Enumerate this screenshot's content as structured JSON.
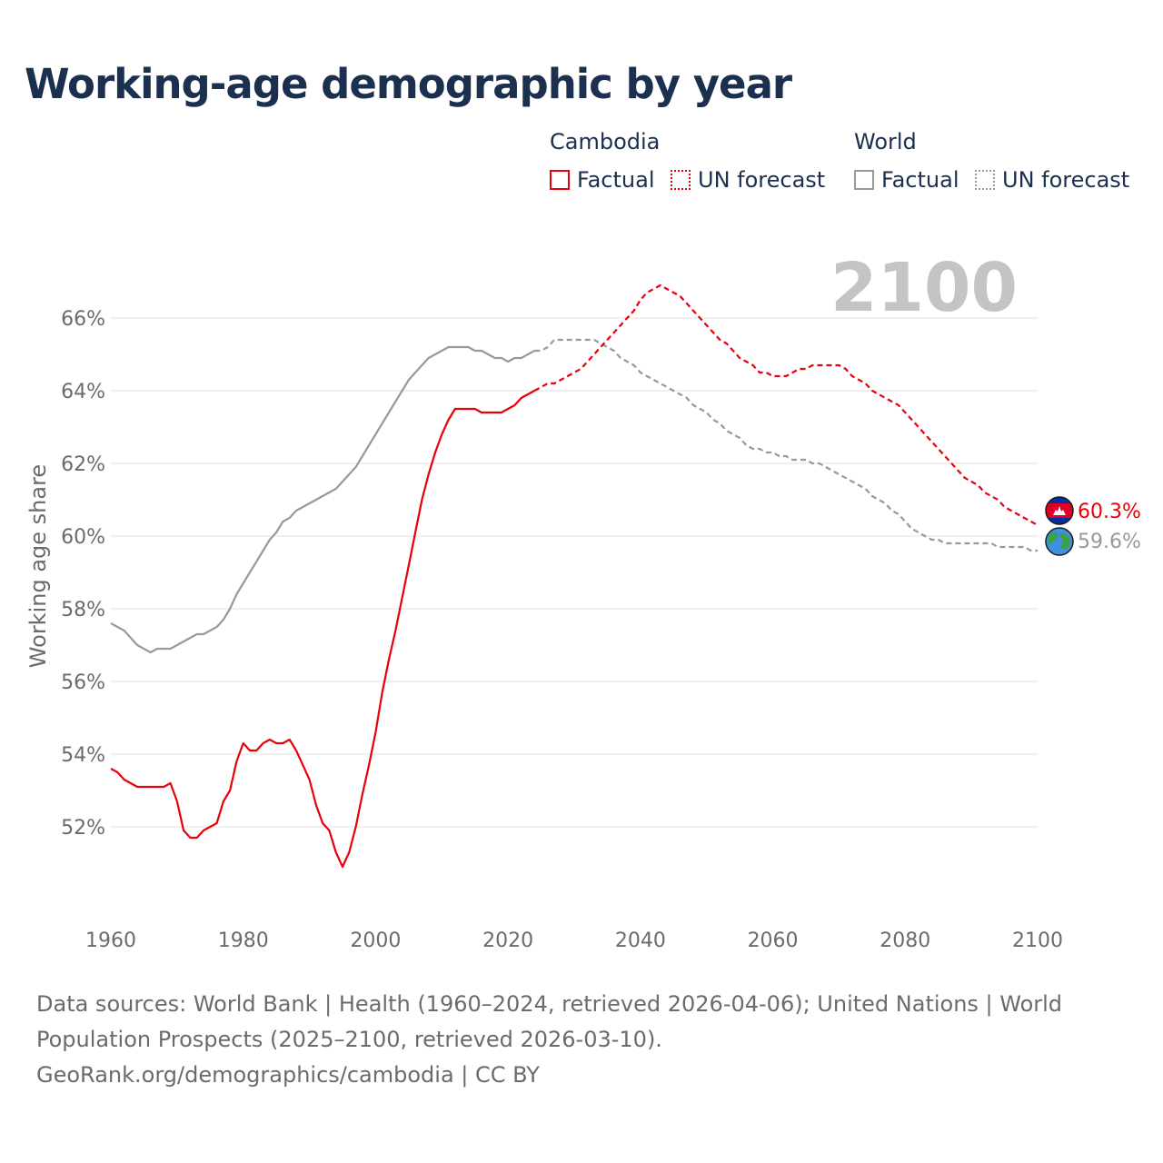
{
  "title": "Working-age demographic by year",
  "legend": {
    "cambodia_title": "Cambodia",
    "world_title": "World",
    "factual_label": "Factual",
    "forecast_label": "UN forecast"
  },
  "year_label": "2100",
  "colors": {
    "cambodia": "#e8000b",
    "world": "#999999",
    "title": "#1b2f4f",
    "grid": "#e6e6e6",
    "axis_text": "#6b6b6b",
    "year_watermark": "#c4c4c4"
  },
  "end_labels": {
    "cambodia": "60.3%",
    "world": "59.6%",
    "cambodia_icon": "cambodia-flag-icon",
    "world_icon": "globe-icon"
  },
  "chart_data": {
    "type": "line",
    "title": "Working-age demographic by year",
    "xlabel": "",
    "ylabel": "Working age share",
    "xlim": [
      1960,
      2100
    ],
    "ylim": [
      50,
      67.5
    ],
    "x_ticks": [
      1960,
      1980,
      2000,
      2020,
      2040,
      2060,
      2080,
      2100
    ],
    "x_tick_labels": [
      "1960",
      "1980",
      "2000",
      "2020",
      "2040",
      "2060",
      "2080",
      "2100"
    ],
    "y_ticks": [
      52,
      54,
      56,
      58,
      60,
      62,
      64,
      66
    ],
    "y_tick_labels": [
      "52%",
      "54%",
      "56%",
      "58%",
      "60%",
      "62%",
      "64%",
      "66%"
    ],
    "grid": true,
    "series": [
      {
        "name": "Cambodia Factual",
        "country": "Cambodia",
        "style": "solid",
        "x": [
          1960,
          1961,
          1962,
          1963,
          1964,
          1965,
          1966,
          1967,
          1968,
          1969,
          1970,
          1971,
          1972,
          1973,
          1974,
          1975,
          1976,
          1977,
          1978,
          1979,
          1980,
          1981,
          1982,
          1983,
          1984,
          1985,
          1986,
          1987,
          1988,
          1989,
          1990,
          1991,
          1992,
          1993,
          1994,
          1995,
          1996,
          1997,
          1998,
          1999,
          2000,
          2001,
          2002,
          2003,
          2004,
          2005,
          2006,
          2007,
          2008,
          2009,
          2010,
          2011,
          2012,
          2013,
          2014,
          2015,
          2016,
          2017,
          2018,
          2019,
          2020,
          2021,
          2022,
          2023,
          2024
        ],
        "values": [
          53.6,
          53.5,
          53.3,
          53.2,
          53.1,
          53.1,
          53.1,
          53.1,
          53.1,
          53.2,
          52.7,
          51.9,
          51.7,
          51.7,
          51.9,
          52.0,
          52.1,
          52.7,
          53.0,
          53.8,
          54.3,
          54.1,
          54.1,
          54.3,
          54.4,
          54.3,
          54.3,
          54.4,
          54.1,
          53.7,
          53.3,
          52.6,
          52.1,
          51.9,
          51.3,
          50.9,
          51.3,
          52.0,
          52.9,
          53.7,
          54.6,
          55.7,
          56.6,
          57.4,
          58.3,
          59.2,
          60.1,
          61.0,
          61.7,
          62.3,
          62.8,
          63.2,
          63.5,
          63.5,
          63.5,
          63.5,
          63.4,
          63.4,
          63.4,
          63.4,
          63.5,
          63.6,
          63.8,
          63.9,
          64.0
        ]
      },
      {
        "name": "Cambodia UN forecast",
        "country": "Cambodia",
        "style": "dashed",
        "x": [
          2024,
          2025,
          2026,
          2027,
          2028,
          2029,
          2030,
          2031,
          2032,
          2033,
          2034,
          2035,
          2036,
          2037,
          2038,
          2039,
          2040,
          2041,
          2042,
          2043,
          2044,
          2045,
          2046,
          2047,
          2048,
          2049,
          2050,
          2051,
          2052,
          2053,
          2054,
          2055,
          2056,
          2057,
          2058,
          2059,
          2060,
          2061,
          2062,
          2063,
          2064,
          2065,
          2066,
          2067,
          2068,
          2069,
          2070,
          2071,
          2072,
          2073,
          2074,
          2075,
          2076,
          2077,
          2078,
          2079,
          2080,
          2081,
          2082,
          2083,
          2084,
          2085,
          2086,
          2087,
          2088,
          2089,
          2090,
          2091,
          2092,
          2093,
          2094,
          2095,
          2096,
          2097,
          2098,
          2099,
          2100
        ],
        "values": [
          64.0,
          64.1,
          64.2,
          64.2,
          64.3,
          64.4,
          64.5,
          64.6,
          64.8,
          65.0,
          65.2,
          65.4,
          65.6,
          65.8,
          66.0,
          66.2,
          66.5,
          66.7,
          66.8,
          66.9,
          66.8,
          66.7,
          66.6,
          66.4,
          66.2,
          66.0,
          65.8,
          65.6,
          65.4,
          65.3,
          65.1,
          64.9,
          64.8,
          64.7,
          64.5,
          64.5,
          64.4,
          64.4,
          64.4,
          64.5,
          64.6,
          64.6,
          64.7,
          64.7,
          64.7,
          64.7,
          64.7,
          64.6,
          64.4,
          64.3,
          64.2,
          64.0,
          63.9,
          63.8,
          63.7,
          63.6,
          63.4,
          63.2,
          63.0,
          62.8,
          62.6,
          62.4,
          62.2,
          62.0,
          61.8,
          61.6,
          61.5,
          61.4,
          61.2,
          61.1,
          61.0,
          60.8,
          60.7,
          60.6,
          60.5,
          60.4,
          60.3
        ]
      },
      {
        "name": "World Factual",
        "country": "World",
        "style": "solid",
        "x": [
          1960,
          1961,
          1962,
          1963,
          1964,
          1965,
          1966,
          1967,
          1968,
          1969,
          1970,
          1971,
          1972,
          1973,
          1974,
          1975,
          1976,
          1977,
          1978,
          1979,
          1980,
          1981,
          1982,
          1983,
          1984,
          1985,
          1986,
          1987,
          1988,
          1989,
          1990,
          1991,
          1992,
          1993,
          1994,
          1995,
          1996,
          1997,
          1998,
          1999,
          2000,
          2001,
          2002,
          2003,
          2004,
          2005,
          2006,
          2007,
          2008,
          2009,
          2010,
          2011,
          2012,
          2013,
          2014,
          2015,
          2016,
          2017,
          2018,
          2019,
          2020,
          2021,
          2022,
          2023,
          2024
        ],
        "values": [
          57.6,
          57.5,
          57.4,
          57.2,
          57.0,
          56.9,
          56.8,
          56.9,
          56.9,
          56.9,
          57.0,
          57.1,
          57.2,
          57.3,
          57.3,
          57.4,
          57.5,
          57.7,
          58.0,
          58.4,
          58.7,
          59.0,
          59.3,
          59.6,
          59.9,
          60.1,
          60.4,
          60.5,
          60.7,
          60.8,
          60.9,
          61.0,
          61.1,
          61.2,
          61.3,
          61.5,
          61.7,
          61.9,
          62.2,
          62.5,
          62.8,
          63.1,
          63.4,
          63.7,
          64.0,
          64.3,
          64.5,
          64.7,
          64.9,
          65.0,
          65.1,
          65.2,
          65.2,
          65.2,
          65.2,
          65.1,
          65.1,
          65.0,
          64.9,
          64.9,
          64.8,
          64.9,
          64.9,
          65.0,
          65.1
        ]
      },
      {
        "name": "World UN forecast",
        "country": "World",
        "style": "dashed",
        "x": [
          2024,
          2025,
          2026,
          2027,
          2028,
          2029,
          2030,
          2031,
          2032,
          2033,
          2034,
          2035,
          2036,
          2037,
          2038,
          2039,
          2040,
          2041,
          2042,
          2043,
          2044,
          2045,
          2046,
          2047,
          2048,
          2049,
          2050,
          2051,
          2052,
          2053,
          2054,
          2055,
          2056,
          2057,
          2058,
          2059,
          2060,
          2061,
          2062,
          2063,
          2064,
          2065,
          2066,
          2067,
          2068,
          2069,
          2070,
          2071,
          2072,
          2073,
          2074,
          2075,
          2076,
          2077,
          2078,
          2079,
          2080,
          2081,
          2082,
          2083,
          2084,
          2085,
          2086,
          2087,
          2088,
          2089,
          2090,
          2091,
          2092,
          2093,
          2094,
          2095,
          2096,
          2097,
          2098,
          2099,
          2100
        ],
        "values": [
          65.1,
          65.1,
          65.2,
          65.4,
          65.4,
          65.4,
          65.4,
          65.4,
          65.4,
          65.4,
          65.3,
          65.2,
          65.1,
          64.9,
          64.8,
          64.7,
          64.5,
          64.4,
          64.3,
          64.2,
          64.1,
          64.0,
          63.9,
          63.8,
          63.6,
          63.5,
          63.4,
          63.2,
          63.1,
          62.9,
          62.8,
          62.7,
          62.5,
          62.4,
          62.4,
          62.3,
          62.3,
          62.2,
          62.2,
          62.1,
          62.1,
          62.1,
          62.0,
          62.0,
          61.9,
          61.8,
          61.7,
          61.6,
          61.5,
          61.4,
          61.3,
          61.1,
          61.0,
          60.9,
          60.7,
          60.6,
          60.4,
          60.2,
          60.1,
          60.0,
          59.9,
          59.9,
          59.8,
          59.8,
          59.8,
          59.8,
          59.8,
          59.8,
          59.8,
          59.8,
          59.7,
          59.7,
          59.7,
          59.7,
          59.7,
          59.6,
          59.6
        ]
      }
    ],
    "annotations": [
      "2100",
      "60.3%",
      "59.6%"
    ]
  },
  "footer": {
    "line1": "Data sources: World Bank | Health (1960–2024, retrieved 2026-04-06); United Nations | World Population Prospects (2025–2100, retrieved 2026-03-10).",
    "line2": "GeoRank.org/demographics/cambodia | CC BY"
  }
}
